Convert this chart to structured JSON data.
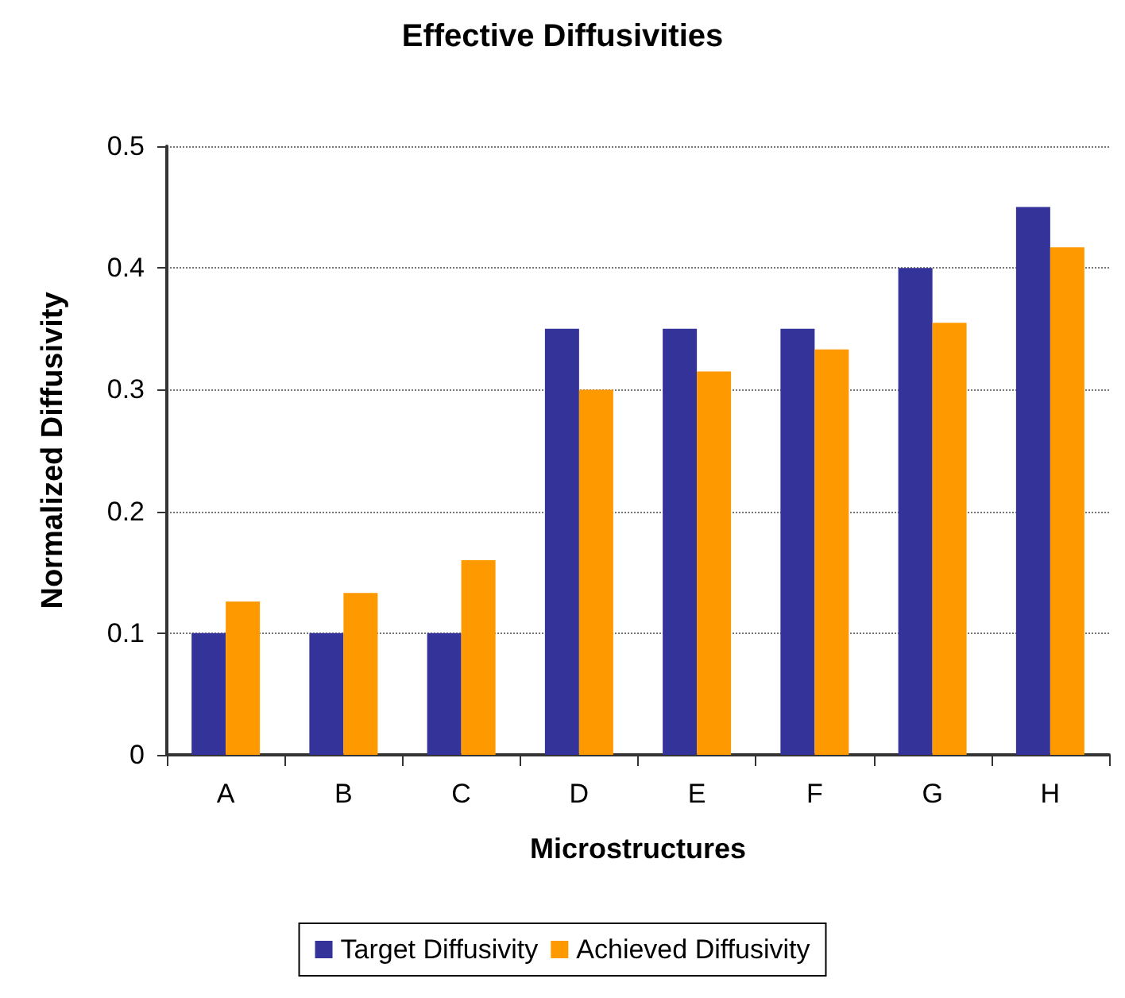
{
  "chart_data": {
    "type": "bar",
    "title": "Effective Diffusivities",
    "xlabel": "Microstructures",
    "ylabel": "Normalized Diffusivity",
    "categories": [
      "A",
      "B",
      "C",
      "D",
      "E",
      "F",
      "G",
      "H"
    ],
    "series": [
      {
        "name": "Target Diffusivity",
        "color": "#333399",
        "values": [
          0.1,
          0.1,
          0.1,
          0.35,
          0.35,
          0.35,
          0.4,
          0.45
        ]
      },
      {
        "name": "Achieved Diffusivity",
        "color": "#ff9900",
        "values": [
          0.126,
          0.133,
          0.16,
          0.3,
          0.315,
          0.333,
          0.355,
          0.417
        ]
      }
    ],
    "ylim": [
      0,
      0.5
    ],
    "yticks": [
      0,
      0.1,
      0.2,
      0.3,
      0.4,
      0.5
    ],
    "grid": "y",
    "legend": "bottom"
  }
}
